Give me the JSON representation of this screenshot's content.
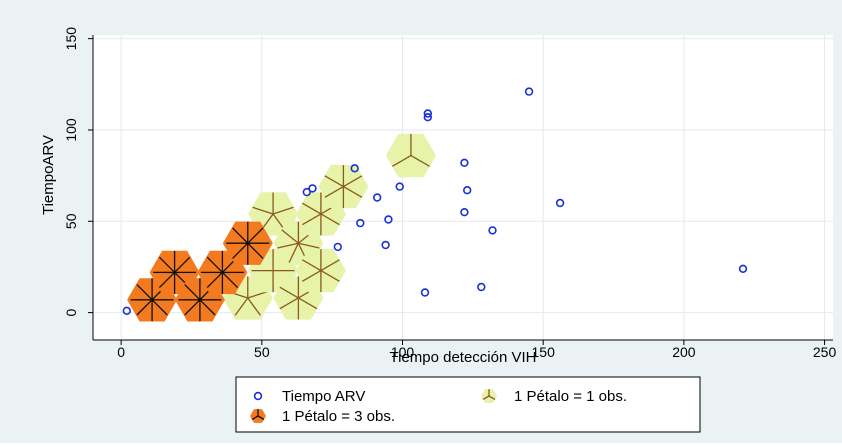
{
  "chart_data": {
    "type": "scatter",
    "title": "",
    "xlabel": "Tiempo detección VIH",
    "ylabel": "TiempoARV",
    "xlim": [
      -10,
      253
    ],
    "ylim": [
      -15,
      152
    ],
    "xticks": [
      0,
      50,
      100,
      150,
      200,
      250
    ],
    "yticks": [
      0,
      50,
      100,
      150
    ],
    "grid": true,
    "legend_position": "bottom",
    "colors": {
      "background": "#eaf2f3",
      "plot_background": "#ffffff",
      "grid": "#e2eaee",
      "marker": "#1a2fd8",
      "petal_light_fill": "#e6f3a9",
      "petal_light_line": "#8a5a24",
      "petal_dark_fill": "#f47a1f",
      "petal_dark_line": "#111111"
    },
    "series": [
      {
        "name": "Tiempo ARV",
        "points": [
          [
            2,
            1
          ],
          [
            66,
            66
          ],
          [
            68,
            68
          ],
          [
            77,
            36
          ],
          [
            83,
            79
          ],
          [
            85,
            49
          ],
          [
            91,
            63
          ],
          [
            94,
            37
          ],
          [
            95,
            51
          ],
          [
            99,
            69
          ],
          [
            108,
            11
          ],
          [
            109,
            109
          ],
          [
            109,
            107
          ],
          [
            122,
            82
          ],
          [
            122,
            55
          ],
          [
            123,
            67
          ],
          [
            128,
            14
          ],
          [
            132,
            45
          ],
          [
            145,
            121
          ],
          [
            156,
            60
          ],
          [
            221,
            24
          ]
        ]
      }
    ],
    "sunflowers": {
      "light": {
        "label": "1 Pétalo = 1 obs.",
        "cells": [
          [
            45,
            8,
            5
          ],
          [
            54,
            23,
            4
          ],
          [
            54,
            54,
            5
          ],
          [
            63,
            8,
            6
          ],
          [
            63,
            38,
            7
          ],
          [
            71,
            23,
            6
          ],
          [
            71,
            54,
            6
          ],
          [
            79,
            69,
            6
          ],
          [
            103,
            86,
            3
          ]
        ]
      },
      "dark": {
        "label": "1 Pétalo = 3 obs.",
        "cells": [
          [
            11,
            7,
            8
          ],
          [
            19,
            22,
            8
          ],
          [
            28,
            7,
            8
          ],
          [
            36,
            22,
            8
          ],
          [
            45,
            38,
            8
          ]
        ]
      }
    }
  }
}
